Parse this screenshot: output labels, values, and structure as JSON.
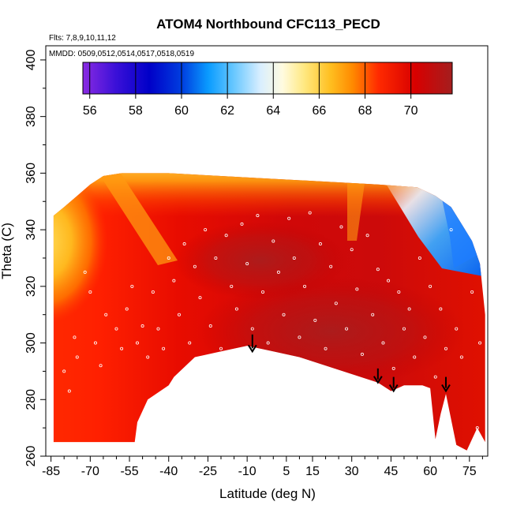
{
  "chart_data": {
    "type": "heatmap",
    "title": "ATOM4 Northbound CFC113_PECD",
    "annotations": [
      "Flts: 7,8,9,10,11,12",
      "MMDD: 0509,0512,0514,0517,0518,0519"
    ],
    "xlabel": "Latitude (deg N)",
    "ylabel": "Theta (C)",
    "x_ticks": [
      "-85",
      "-70",
      "-55",
      "-40",
      "-25",
      "-10",
      "5",
      "15",
      "30",
      "45",
      "60",
      "75"
    ],
    "x_tick_values": [
      -85,
      -70,
      -55,
      -40,
      -25,
      -10,
      5,
      15,
      30,
      45,
      60,
      75
    ],
    "y_ticks": [
      "260",
      "280",
      "300",
      "320",
      "340",
      "360",
      "380",
      "400"
    ],
    "y_tick_values": [
      260,
      280,
      300,
      320,
      340,
      360,
      380,
      400
    ],
    "xlim": [
      -87,
      82
    ],
    "ylim": [
      260,
      405
    ],
    "colorbar": {
      "ticks": [
        "56",
        "58",
        "60",
        "62",
        "64",
        "66",
        "68",
        "70"
      ],
      "tick_values": [
        56,
        58,
        60,
        62,
        64,
        66,
        68,
        70
      ],
      "range": [
        55.7,
        71.8
      ]
    },
    "field_top": [
      [
        -84,
        345
      ],
      [
        -80,
        348
      ],
      [
        -75,
        352
      ],
      [
        -70,
        356
      ],
      [
        -65,
        359
      ],
      [
        -58,
        360
      ],
      [
        -40,
        360
      ],
      [
        -20,
        359
      ],
      [
        0,
        358
      ],
      [
        20,
        357
      ],
      [
        40,
        356
      ],
      [
        55,
        355
      ],
      [
        62,
        352
      ],
      [
        68,
        348
      ],
      [
        72,
        342
      ],
      [
        76,
        336
      ],
      [
        79,
        328
      ],
      [
        81,
        310
      ]
    ],
    "field_bottom": [
      [
        81,
        265
      ],
      [
        78,
        270
      ],
      [
        74,
        262
      ],
      [
        70,
        264
      ],
      [
        66,
        282
      ],
      [
        64,
        275
      ],
      [
        62,
        266
      ],
      [
        60,
        284
      ],
      [
        57,
        285
      ],
      [
        50,
        285
      ],
      [
        45,
        283
      ],
      [
        40,
        286
      ],
      [
        30,
        289
      ],
      [
        20,
        292
      ],
      [
        10,
        295
      ],
      [
        0,
        297
      ],
      [
        -10,
        299
      ],
      [
        -20,
        297
      ],
      [
        -30,
        295
      ],
      [
        -38,
        288
      ],
      [
        -40,
        285
      ],
      [
        -48,
        280
      ],
      [
        -52,
        272
      ],
      [
        -53,
        265
      ],
      [
        -84,
        265
      ]
    ],
    "arrows": [
      {
        "lat": -8,
        "theta_top": 303,
        "theta_tip": 297
      },
      {
        "lat": 40,
        "theta_top": 291,
        "theta_tip": 286
      },
      {
        "lat": 46,
        "theta_top": 288,
        "theta_tip": 283
      },
      {
        "lat": 66,
        "theta_top": 288,
        "theta_tip": 283
      }
    ],
    "sample_points": [
      [
        -80,
        290
      ],
      [
        -78,
        283
      ],
      [
        -76,
        302
      ],
      [
        -75,
        295
      ],
      [
        -72,
        325
      ],
      [
        -70,
        318
      ],
      [
        -68,
        300
      ],
      [
        -66,
        292
      ],
      [
        -64,
        310
      ],
      [
        -60,
        305
      ],
      [
        -58,
        298
      ],
      [
        -56,
        312
      ],
      [
        -54,
        320
      ],
      [
        -52,
        300
      ],
      [
        -50,
        306
      ],
      [
        -48,
        295
      ],
      [
        -46,
        318
      ],
      [
        -44,
        305
      ],
      [
        -42,
        298
      ],
      [
        -40,
        330
      ],
      [
        -38,
        322
      ],
      [
        -36,
        310
      ],
      [
        -34,
        335
      ],
      [
        -32,
        300
      ],
      [
        -30,
        327
      ],
      [
        -28,
        316
      ],
      [
        -26,
        340
      ],
      [
        -24,
        306
      ],
      [
        -22,
        330
      ],
      [
        -20,
        298
      ],
      [
        -18,
        338
      ],
      [
        -16,
        320
      ],
      [
        -14,
        312
      ],
      [
        -12,
        342
      ],
      [
        -10,
        328
      ],
      [
        -8,
        305
      ],
      [
        -6,
        345
      ],
      [
        -4,
        318
      ],
      [
        -2,
        300
      ],
      [
        0,
        336
      ],
      [
        2,
        325
      ],
      [
        4,
        310
      ],
      [
        6,
        344
      ],
      [
        8,
        330
      ],
      [
        10,
        302
      ],
      [
        12,
        320
      ],
      [
        14,
        346
      ],
      [
        16,
        308
      ],
      [
        18,
        335
      ],
      [
        20,
        298
      ],
      [
        22,
        327
      ],
      [
        24,
        314
      ],
      [
        26,
        341
      ],
      [
        28,
        305
      ],
      [
        30,
        333
      ],
      [
        32,
        319
      ],
      [
        34,
        296
      ],
      [
        36,
        338
      ],
      [
        38,
        310
      ],
      [
        40,
        326
      ],
      [
        42,
        300
      ],
      [
        44,
        322
      ],
      [
        46,
        291
      ],
      [
        48,
        318
      ],
      [
        50,
        305
      ],
      [
        52,
        312
      ],
      [
        54,
        295
      ],
      [
        56,
        330
      ],
      [
        58,
        302
      ],
      [
        60,
        320
      ],
      [
        62,
        288
      ],
      [
        64,
        312
      ],
      [
        66,
        298
      ],
      [
        68,
        340
      ],
      [
        70,
        305
      ],
      [
        72,
        295
      ],
      [
        74,
        350
      ],
      [
        76,
        318
      ],
      [
        78,
        270
      ],
      [
        79,
        300
      ]
    ],
    "grid": false,
    "colorbar_position": "top"
  }
}
